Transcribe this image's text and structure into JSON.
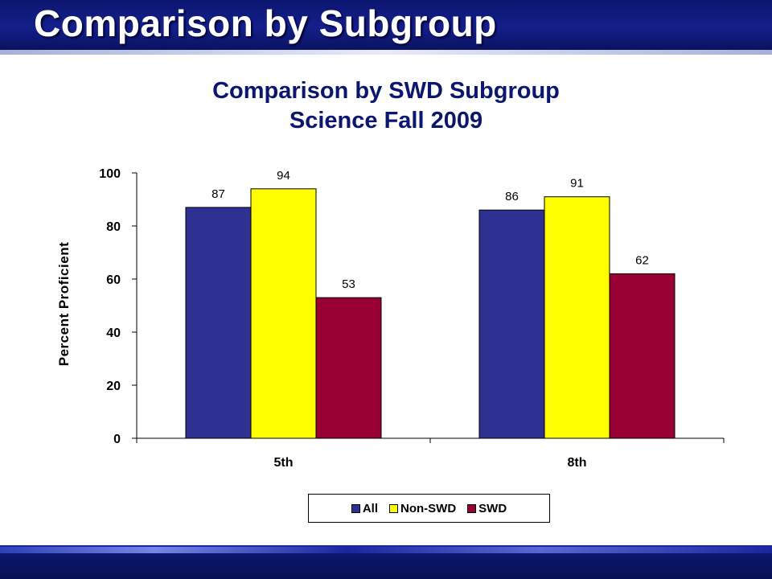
{
  "slide": {
    "title": "Comparison by Subgroup"
  },
  "chart_data": {
    "type": "bar",
    "title": "Comparison by SWD Subgroup",
    "subtitle": "Science Fall 2009",
    "xlabel": "",
    "ylabel": "Percent Proficient",
    "ylim": [
      0,
      100
    ],
    "yticks": [
      0,
      20,
      40,
      60,
      80,
      100
    ],
    "categories": [
      "5th",
      "8th"
    ],
    "series": [
      {
        "name": "All",
        "values": [
          87,
          86
        ],
        "color": "#2e3192"
      },
      {
        "name": "Non-SWD",
        "values": [
          94,
          91
        ],
        "color": "#ffff00"
      },
      {
        "name": "SWD",
        "values": [
          53,
          62
        ],
        "color": "#990033"
      }
    ],
    "legend_position": "bottom",
    "grid": false,
    "data_labels": true
  }
}
